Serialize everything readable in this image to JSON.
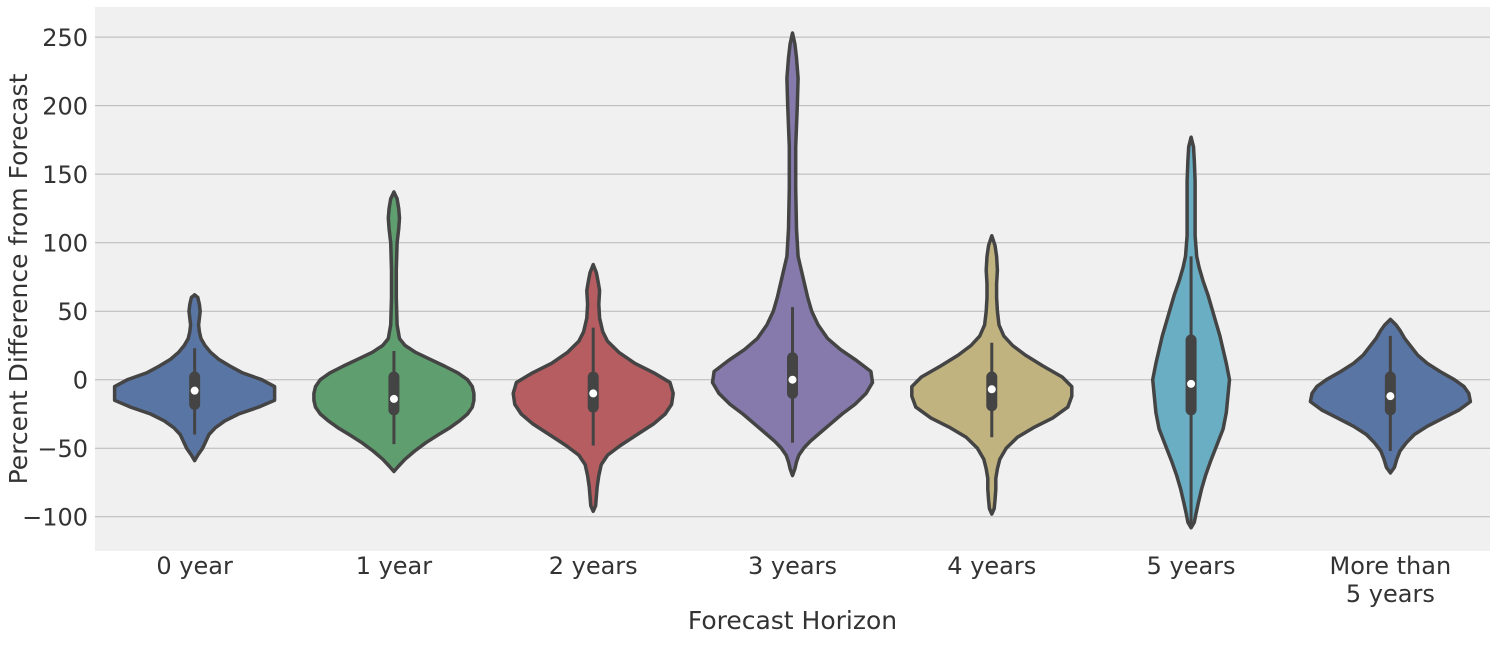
{
  "chart_data": {
    "type": "violin",
    "xlabel": "Forecast Horizon",
    "ylabel": "Percent Difference from Forecast",
    "ylim": [
      -125,
      272
    ],
    "yticks": [
      -100,
      -50,
      0,
      50,
      100,
      150,
      200,
      250
    ],
    "ytick_labels": [
      "−100",
      "−50",
      "0",
      "50",
      "100",
      "150",
      "200",
      "250"
    ],
    "grid": "horizontal",
    "categories": [
      {
        "label_lines": [
          "0 year"
        ],
        "color": "#5975a4",
        "median": -8,
        "q1": -18,
        "q3": 2,
        "whisker_low": -40,
        "whisker_high": 23,
        "density": [
          [
            -59,
            0
          ],
          [
            -55,
            0.04
          ],
          [
            -50,
            0.1
          ],
          [
            -45,
            0.14
          ],
          [
            -40,
            0.18
          ],
          [
            -35,
            0.26
          ],
          [
            -30,
            0.38
          ],
          [
            -25,
            0.55
          ],
          [
            -20,
            0.8
          ],
          [
            -15,
            1.0
          ],
          [
            -10,
            1.0
          ],
          [
            -5,
            1.0
          ],
          [
            0,
            0.84
          ],
          [
            5,
            0.6
          ],
          [
            10,
            0.44
          ],
          [
            15,
            0.3
          ],
          [
            20,
            0.2
          ],
          [
            25,
            0.13
          ],
          [
            30,
            0.08
          ],
          [
            35,
            0.06
          ],
          [
            40,
            0.05
          ],
          [
            45,
            0.06
          ],
          [
            50,
            0.07
          ],
          [
            55,
            0.06
          ],
          [
            60,
            0.04
          ],
          [
            62,
            0
          ]
        ]
      },
      {
        "label_lines": [
          "1 year"
        ],
        "color": "#5f9e6e",
        "median": -14,
        "q1": -22,
        "q3": 2,
        "whisker_low": -47,
        "whisker_high": 21,
        "density": [
          [
            -67,
            0
          ],
          [
            -63,
            0.06
          ],
          [
            -58,
            0.14
          ],
          [
            -52,
            0.26
          ],
          [
            -46,
            0.4
          ],
          [
            -40,
            0.56
          ],
          [
            -35,
            0.7
          ],
          [
            -30,
            0.82
          ],
          [
            -25,
            0.92
          ],
          [
            -20,
            0.98
          ],
          [
            -15,
            1.0
          ],
          [
            -10,
            1.0
          ],
          [
            -5,
            0.98
          ],
          [
            0,
            0.92
          ],
          [
            5,
            0.8
          ],
          [
            10,
            0.63
          ],
          [
            15,
            0.45
          ],
          [
            20,
            0.27
          ],
          [
            25,
            0.14
          ],
          [
            30,
            0.07
          ],
          [
            40,
            0.04
          ],
          [
            60,
            0.03
          ],
          [
            80,
            0.03
          ],
          [
            100,
            0.04
          ],
          [
            110,
            0.06
          ],
          [
            118,
            0.07
          ],
          [
            125,
            0.06
          ],
          [
            132,
            0.04
          ],
          [
            137,
            0
          ]
        ]
      },
      {
        "label_lines": [
          "2 years"
        ],
        "color": "#b55d60",
        "median": -10,
        "q1": -20,
        "q3": 2,
        "whisker_low": -48,
        "whisker_high": 38,
        "density": [
          [
            -96,
            0
          ],
          [
            -92,
            0.03
          ],
          [
            -85,
            0.04
          ],
          [
            -78,
            0.05
          ],
          [
            -70,
            0.07
          ],
          [
            -62,
            0.1
          ],
          [
            -55,
            0.18
          ],
          [
            -48,
            0.34
          ],
          [
            -40,
            0.55
          ],
          [
            -32,
            0.76
          ],
          [
            -25,
            0.9
          ],
          [
            -18,
            0.98
          ],
          [
            -10,
            1.0
          ],
          [
            -2,
            0.96
          ],
          [
            5,
            0.76
          ],
          [
            12,
            0.52
          ],
          [
            20,
            0.32
          ],
          [
            28,
            0.18
          ],
          [
            35,
            0.12
          ],
          [
            45,
            0.08
          ],
          [
            55,
            0.07
          ],
          [
            65,
            0.08
          ],
          [
            72,
            0.06
          ],
          [
            78,
            0.04
          ],
          [
            84,
            0
          ]
        ]
      },
      {
        "label_lines": [
          "3 years"
        ],
        "color": "#857aab",
        "median": 0,
        "q1": -10,
        "q3": 16,
        "whisker_low": -46,
        "whisker_high": 53,
        "density": [
          [
            -70,
            0
          ],
          [
            -65,
            0.03
          ],
          [
            -60,
            0.05
          ],
          [
            -55,
            0.08
          ],
          [
            -50,
            0.14
          ],
          [
            -45,
            0.22
          ],
          [
            -40,
            0.32
          ],
          [
            -33,
            0.46
          ],
          [
            -25,
            0.62
          ],
          [
            -18,
            0.78
          ],
          [
            -10,
            0.92
          ],
          [
            -2,
            1.0
          ],
          [
            6,
            0.98
          ],
          [
            14,
            0.8
          ],
          [
            22,
            0.6
          ],
          [
            30,
            0.44
          ],
          [
            40,
            0.32
          ],
          [
            50,
            0.24
          ],
          [
            60,
            0.19
          ],
          [
            70,
            0.15
          ],
          [
            80,
            0.11
          ],
          [
            90,
            0.07
          ],
          [
            110,
            0.05
          ],
          [
            140,
            0.04
          ],
          [
            170,
            0.04
          ],
          [
            200,
            0.06
          ],
          [
            220,
            0.07
          ],
          [
            235,
            0.05
          ],
          [
            245,
            0.03
          ],
          [
            253,
            0
          ]
        ]
      },
      {
        "label_lines": [
          "4 years"
        ],
        "color": "#c1b37f",
        "median": -7,
        "q1": -19,
        "q3": 2,
        "whisker_low": -42,
        "whisker_high": 27,
        "density": [
          [
            -98,
            0
          ],
          [
            -94,
            0.03
          ],
          [
            -88,
            0.04
          ],
          [
            -80,
            0.05
          ],
          [
            -72,
            0.05
          ],
          [
            -65,
            0.07
          ],
          [
            -58,
            0.1
          ],
          [
            -50,
            0.18
          ],
          [
            -42,
            0.32
          ],
          [
            -35,
            0.52
          ],
          [
            -28,
            0.76
          ],
          [
            -20,
            0.95
          ],
          [
            -12,
            1.0
          ],
          [
            -5,
            1.0
          ],
          [
            2,
            0.88
          ],
          [
            10,
            0.64
          ],
          [
            18,
            0.42
          ],
          [
            25,
            0.26
          ],
          [
            32,
            0.15
          ],
          [
            40,
            0.09
          ],
          [
            50,
            0.07
          ],
          [
            60,
            0.06
          ],
          [
            70,
            0.06
          ],
          [
            80,
            0.07
          ],
          [
            90,
            0.06
          ],
          [
            98,
            0.04
          ],
          [
            105,
            0
          ]
        ]
      },
      {
        "label_lines": [
          "5 years"
        ],
        "color": "#6aaec4",
        "median": -3,
        "q1": -22,
        "q3": 29,
        "whisker_low": -108,
        "whisker_high": 90,
        "density": [
          [
            -108,
            0
          ],
          [
            -104,
            0.04
          ],
          [
            -98,
            0.06
          ],
          [
            -90,
            0.09
          ],
          [
            -80,
            0.13
          ],
          [
            -70,
            0.18
          ],
          [
            -60,
            0.24
          ],
          [
            -48,
            0.32
          ],
          [
            -36,
            0.4
          ],
          [
            -24,
            0.44
          ],
          [
            -12,
            0.46
          ],
          [
            0,
            0.48
          ],
          [
            12,
            0.44
          ],
          [
            22,
            0.4
          ],
          [
            32,
            0.36
          ],
          [
            42,
            0.31
          ],
          [
            52,
            0.26
          ],
          [
            62,
            0.21
          ],
          [
            72,
            0.15
          ],
          [
            82,
            0.1
          ],
          [
            90,
            0.07
          ],
          [
            105,
            0.05
          ],
          [
            125,
            0.05
          ],
          [
            145,
            0.05
          ],
          [
            160,
            0.04
          ],
          [
            170,
            0.03
          ],
          [
            177,
            0
          ]
        ]
      },
      {
        "label_lines": [
          "More than",
          "5 years"
        ],
        "color": "#5975a4",
        "median": -12,
        "q1": -22,
        "q3": 2,
        "whisker_low": -52,
        "whisker_high": 32,
        "density": [
          [
            -68,
            0
          ],
          [
            -64,
            0.05
          ],
          [
            -58,
            0.08
          ],
          [
            -52,
            0.12
          ],
          [
            -46,
            0.2
          ],
          [
            -40,
            0.3
          ],
          [
            -34,
            0.46
          ],
          [
            -28,
            0.66
          ],
          [
            -22,
            0.86
          ],
          [
            -16,
            1.0
          ],
          [
            -10,
            0.98
          ],
          [
            -5,
            0.92
          ],
          [
            0,
            0.8
          ],
          [
            6,
            0.62
          ],
          [
            12,
            0.46
          ],
          [
            18,
            0.34
          ],
          [
            24,
            0.26
          ],
          [
            30,
            0.18
          ],
          [
            36,
            0.12
          ],
          [
            40,
            0.07
          ],
          [
            44,
            0
          ]
        ]
      }
    ]
  }
}
